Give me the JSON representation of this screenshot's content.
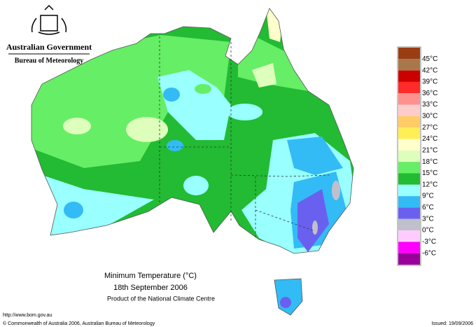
{
  "header": {
    "government": "Australian Government",
    "bureau": "Bureau of Meteorology"
  },
  "map": {
    "title": "Minimum Temperature (°C)",
    "date": "18th September 2006",
    "product": "Product of the National Climate Centre"
  },
  "legend": {
    "colors": [
      "#9b3d12",
      "#a8784a",
      "#cc0000",
      "#ff2a2a",
      "#ff9090",
      "#ffcccc",
      "#ffcc66",
      "#ffee55",
      "#ffffcc",
      "#ddffbb",
      "#66ee66",
      "#22bb33",
      "#99ffff",
      "#33bbf5",
      "#6a60f0",
      "#c0c0cc",
      "#ffccff",
      "#ff00ff",
      "#990099"
    ],
    "labels": [
      "45°C",
      "42°C",
      "39°C",
      "36°C",
      "33°C",
      "30°C",
      "27°C",
      "24°C",
      "21°C",
      "18°C",
      "15°C",
      "12°C",
      "9°C",
      "6°C",
      "3°C",
      "0°C",
      "-3°C",
      "-6°C"
    ]
  },
  "footer": {
    "url": "http://www.bom.gov.au",
    "copyright": "© Commonwealth of Australia 2006, Australian Bureau of Meteorology",
    "issued": "Issued: 19/09/2006"
  }
}
